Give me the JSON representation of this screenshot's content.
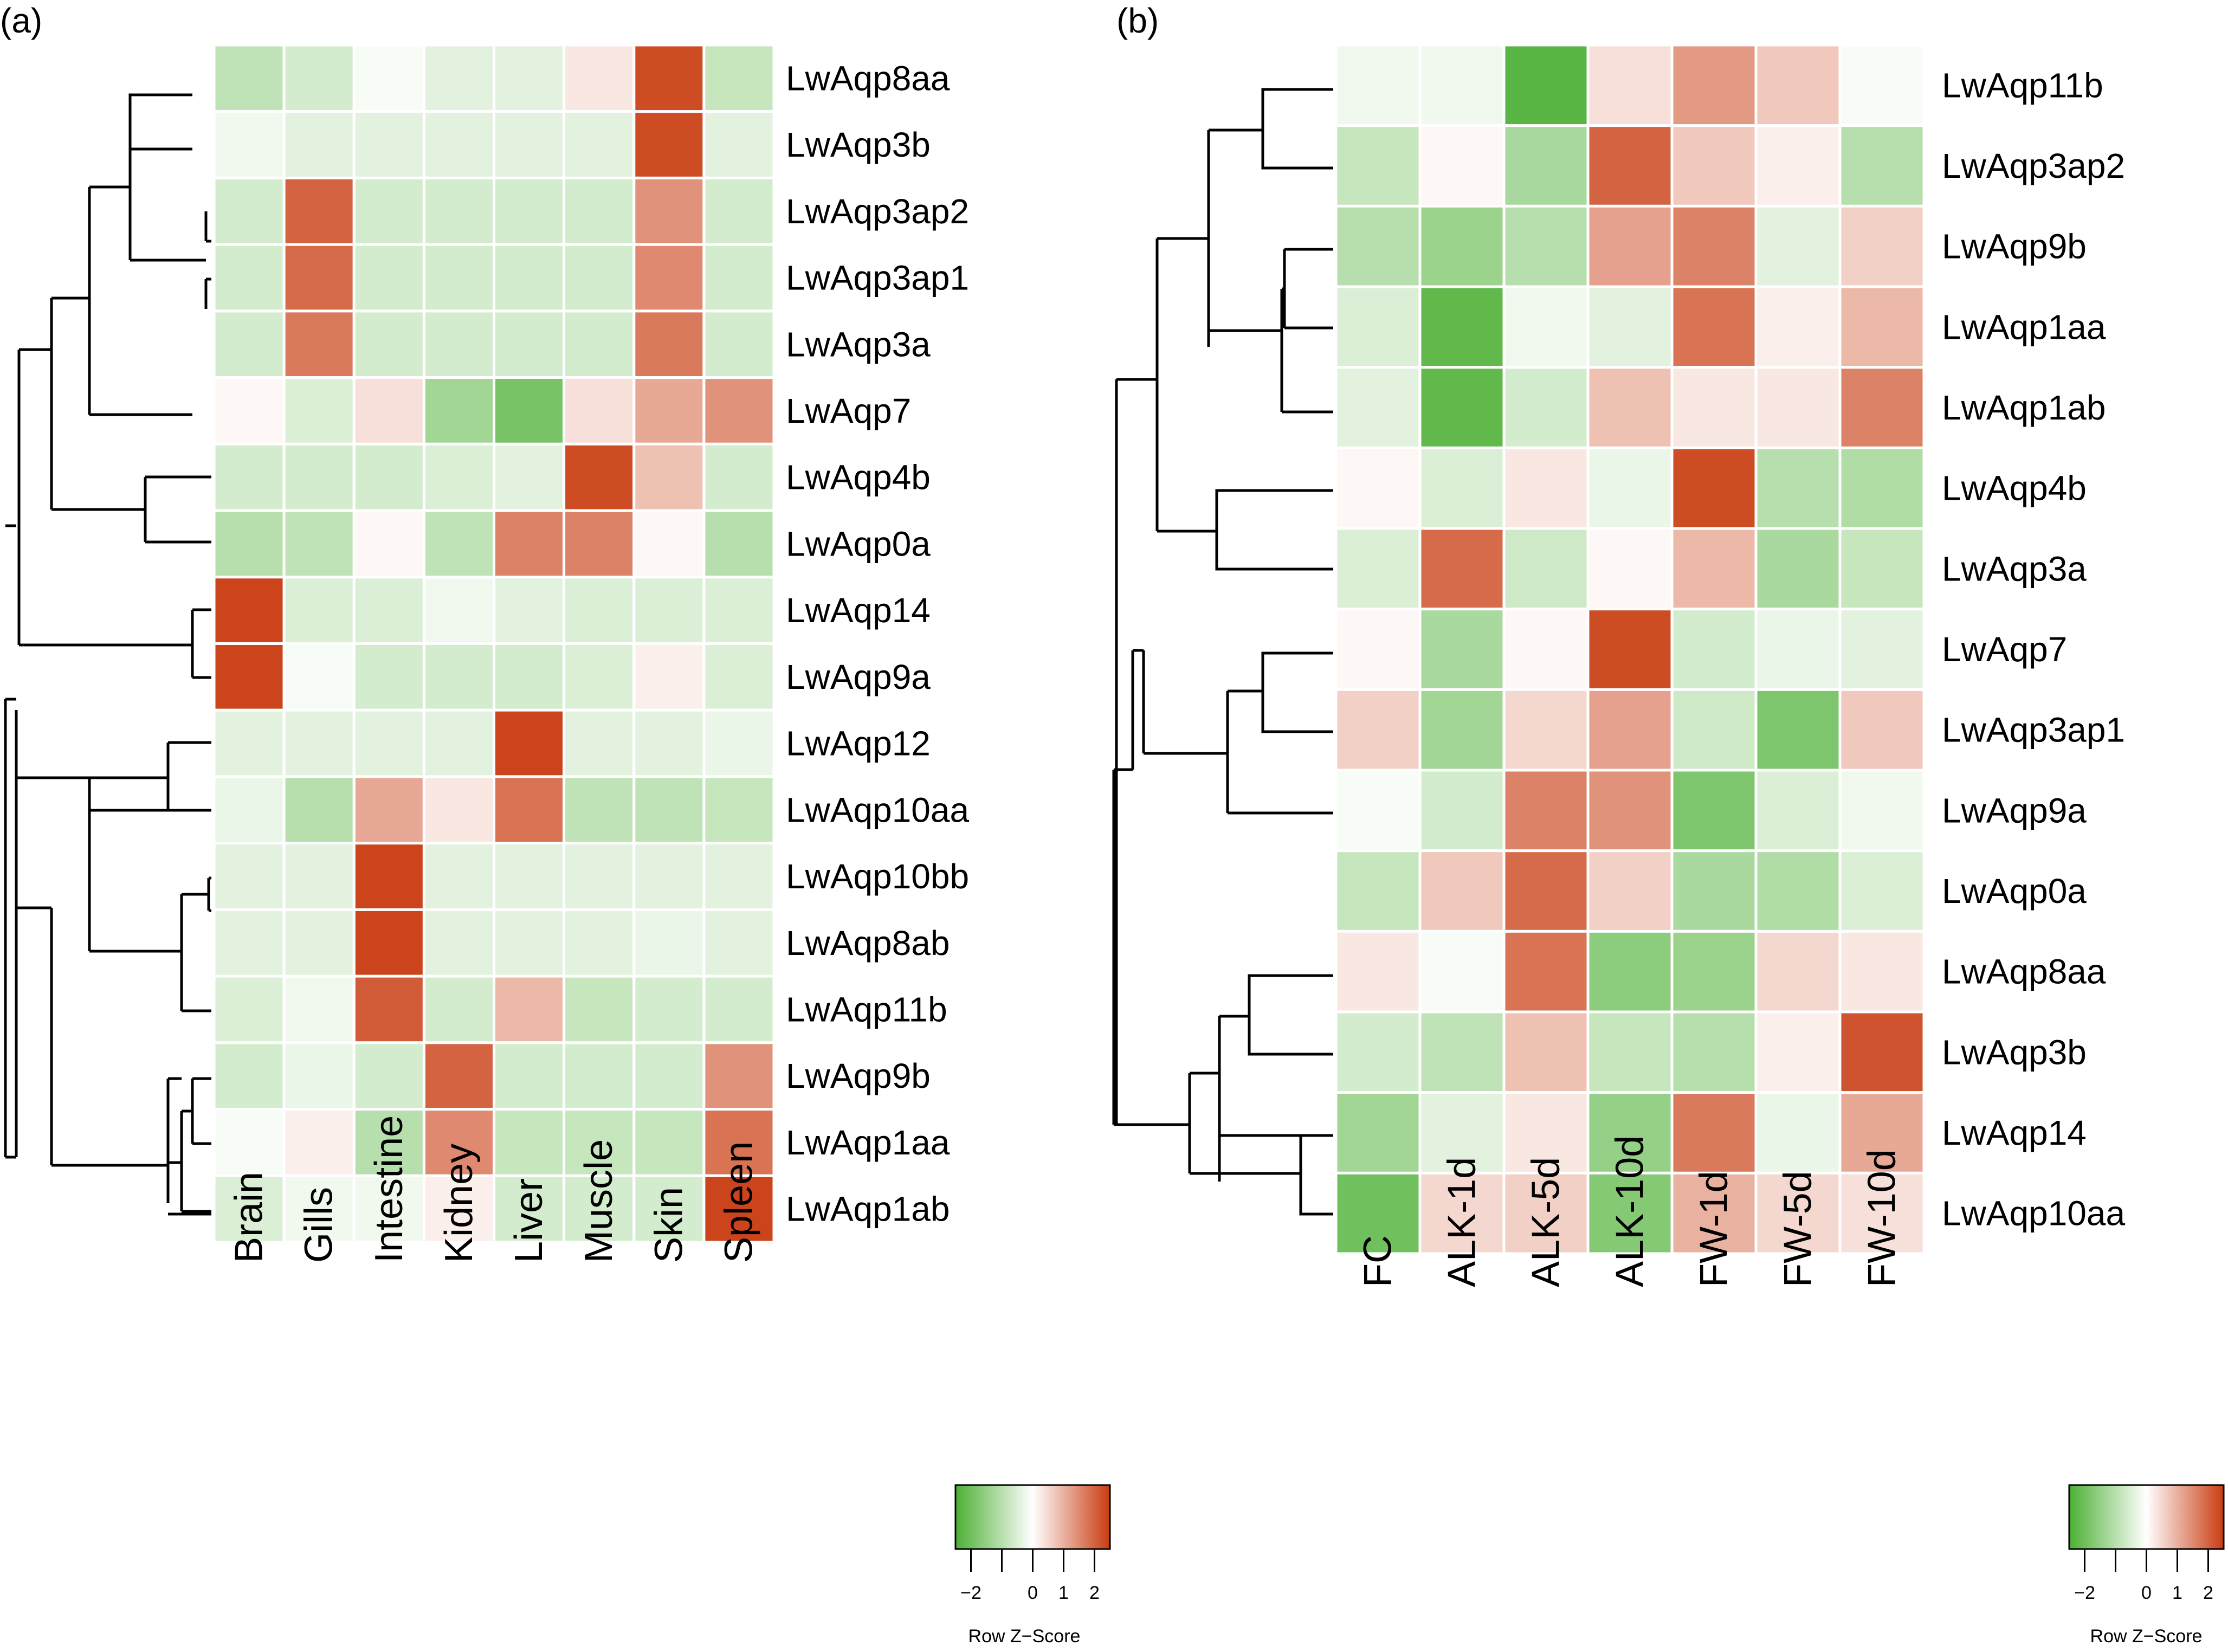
{
  "chart_data": [
    {
      "type": "heatmap",
      "panel_label": "(a)",
      "rows": [
        "LwAqp8aa",
        "LwAqp3b",
        "LwAqp3ap2",
        "LwAqp3ap1",
        "LwAqp3a",
        "LwAqp7",
        "LwAqp4b",
        "LwAqp0a",
        "LwAqp14",
        "LwAqp9a",
        "LwAqp12",
        "LwAqp10aa",
        "LwAqp10bb",
        "LwAqp8ab",
        "LwAqp11b",
        "LwAqp9b",
        "LwAqp1aa",
        "LwAqp1ab"
      ],
      "columns": [
        "Brain",
        "Gills",
        "Intestine",
        "Kidney",
        "Liver",
        "Muscle",
        "Skin",
        "Spleen"
      ],
      "values": [
        [
          -0.9,
          -0.6,
          -0.1,
          -0.4,
          -0.4,
          0.3,
          2.3,
          -0.8
        ],
        [
          -0.2,
          -0.4,
          -0.4,
          -0.4,
          -0.4,
          -0.4,
          2.3,
          -0.4
        ],
        [
          -0.6,
          2.0,
          -0.6,
          -0.6,
          -0.6,
          -0.6,
          1.4,
          -0.6
        ],
        [
          -0.6,
          1.9,
          -0.6,
          -0.6,
          -0.6,
          -0.6,
          1.5,
          -0.6
        ],
        [
          -0.6,
          1.7,
          -0.6,
          -0.6,
          -0.6,
          -0.6,
          1.7,
          -0.6
        ],
        [
          0.1,
          -0.5,
          0.4,
          -1.3,
          -1.9,
          0.4,
          1.1,
          1.4
        ],
        [
          -0.6,
          -0.6,
          -0.6,
          -0.5,
          -0.4,
          2.3,
          0.8,
          -0.6
        ],
        [
          -1.0,
          -0.9,
          0.1,
          -0.9,
          1.6,
          1.6,
          0.1,
          -1.0
        ],
        [
          2.4,
          -0.5,
          -0.5,
          -0.2,
          -0.4,
          -0.5,
          -0.5,
          -0.5
        ],
        [
          2.4,
          -0.1,
          -0.6,
          -0.6,
          -0.6,
          -0.5,
          0.2,
          -0.5
        ],
        [
          -0.4,
          -0.4,
          -0.4,
          -0.4,
          2.4,
          -0.4,
          -0.4,
          -0.3
        ],
        [
          -0.3,
          -1.0,
          1.1,
          0.3,
          1.8,
          -0.9,
          -0.9,
          -0.8
        ],
        [
          -0.4,
          -0.4,
          2.4,
          -0.4,
          -0.4,
          -0.4,
          -0.4,
          -0.4
        ],
        [
          -0.4,
          -0.4,
          2.4,
          -0.4,
          -0.4,
          -0.4,
          -0.3,
          -0.4
        ],
        [
          -0.5,
          -0.2,
          2.1,
          -0.6,
          0.9,
          -0.8,
          -0.6,
          -0.6
        ],
        [
          -0.6,
          -0.3,
          -0.6,
          2.0,
          -0.6,
          -0.6,
          -0.6,
          1.4
        ],
        [
          -0.1,
          0.2,
          -1.0,
          1.5,
          -0.8,
          -0.8,
          -0.8,
          1.8
        ],
        [
          -0.5,
          -0.2,
          -0.2,
          0.2,
          -0.6,
          -0.6,
          -0.6,
          2.4
        ]
      ],
      "color_key": {
        "title": "Row Z−Score",
        "ticks": [
          "−2",
          "0",
          "1",
          "2"
        ],
        "tick_values": [
          -2,
          0,
          1,
          2
        ],
        "range": [
          -2.5,
          2.5
        ],
        "low_color": "#4cb034",
        "mid_color": "#ffffff",
        "high_color": "#c93c11"
      }
    },
    {
      "type": "heatmap",
      "panel_label": "(b)",
      "rows": [
        "LwAqp11b",
        "LwAqp3ap2",
        "LwAqp9b",
        "LwAqp1aa",
        "LwAqp1ab",
        "LwAqp4b",
        "LwAqp3a",
        "LwAqp7",
        "LwAqp3ap1",
        "LwAqp9a",
        "LwAqp0a",
        "LwAqp8aa",
        "LwAqp3b",
        "LwAqp14",
        "LwAqp10aa"
      ],
      "columns": [
        "FC",
        "ALK-1d",
        "ALK-5d",
        "ALK-10d",
        "FW-1d",
        "FW-5d",
        "FW-10d"
      ],
      "values": [
        [
          -0.2,
          -0.2,
          -2.3,
          0.4,
          1.3,
          0.7,
          -0.1
        ],
        [
          -0.8,
          0.1,
          -1.2,
          2.0,
          0.7,
          0.2,
          -1.0
        ],
        [
          -1.0,
          -1.4,
          -1.0,
          1.2,
          1.6,
          -0.4,
          0.6
        ],
        [
          -0.5,
          -2.2,
          -0.2,
          -0.4,
          1.8,
          0.2,
          0.9
        ],
        [
          -0.4,
          -2.2,
          -0.6,
          0.8,
          0.3,
          0.3,
          1.6
        ],
        [
          0.1,
          -0.5,
          0.3,
          -0.3,
          2.3,
          -1.0,
          -1.1
        ],
        [
          -0.5,
          1.9,
          -0.7,
          0.1,
          0.9,
          -1.2,
          -0.8
        ],
        [
          0.1,
          -1.2,
          0.1,
          2.3,
          -0.6,
          -0.3,
          -0.4
        ],
        [
          0.6,
          -1.3,
          0.5,
          1.2,
          -0.7,
          -1.8,
          0.7
        ],
        [
          -0.1,
          -0.6,
          1.6,
          1.4,
          -1.8,
          -0.5,
          -0.2
        ],
        [
          -0.8,
          0.7,
          1.9,
          0.6,
          -1.2,
          -1.1,
          -0.5
        ],
        [
          0.3,
          -0.1,
          1.8,
          -1.6,
          -1.4,
          0.5,
          0.3
        ],
        [
          -0.6,
          -0.9,
          0.8,
          -0.8,
          -1.0,
          0.2,
          2.2
        ],
        [
          -1.3,
          -0.4,
          0.3,
          -1.5,
          1.7,
          -0.3,
          1.1
        ],
        [
          -2.0,
          0.5,
          0.6,
          -1.7,
          1.0,
          0.5,
          0.4
        ]
      ],
      "color_key": {
        "title": "Row Z−Score",
        "ticks": [
          "−2",
          "0",
          "1",
          "2"
        ],
        "tick_values": [
          -2,
          0,
          1,
          2
        ],
        "range": [
          -2.5,
          2.5
        ],
        "low_color": "#4cb034",
        "mid_color": "#ffffff",
        "high_color": "#c93c11"
      }
    }
  ]
}
